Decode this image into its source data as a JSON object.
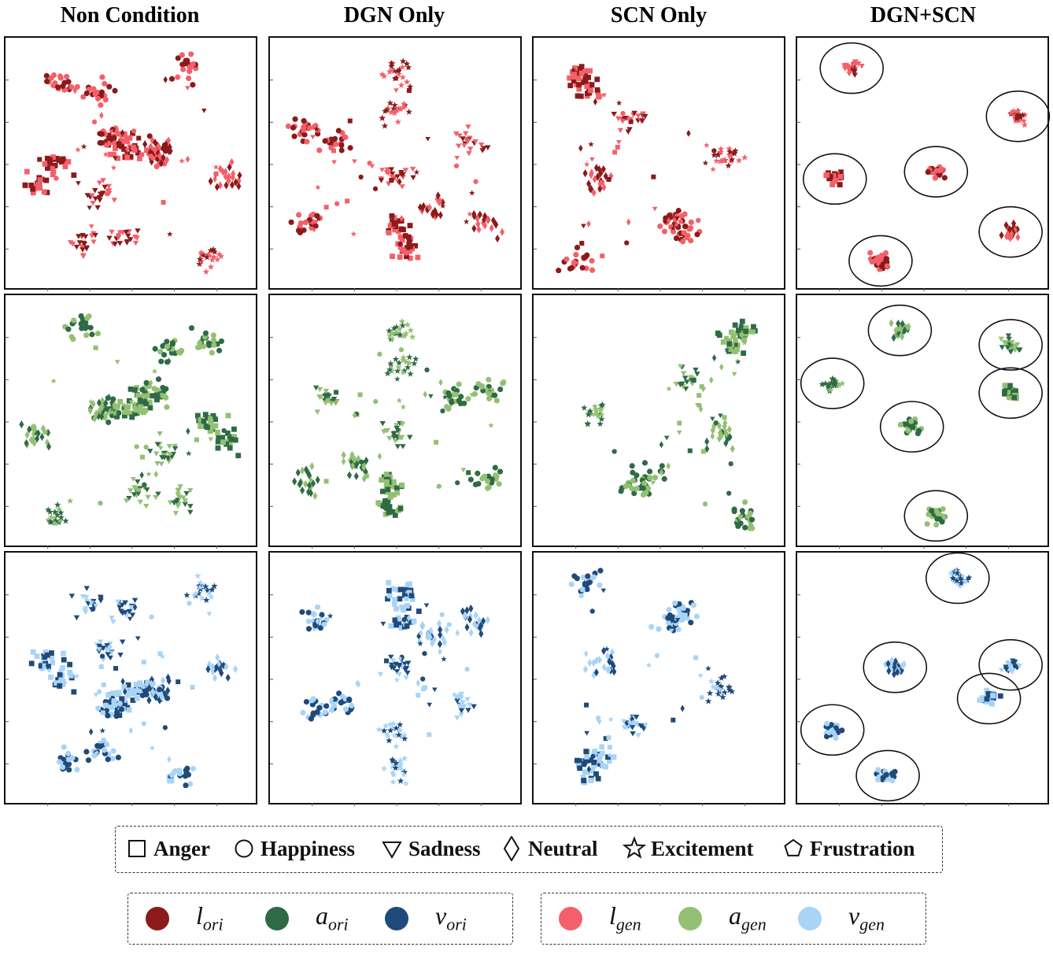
{
  "columns": [
    "Non Condition",
    "DGN Only",
    "SCN Only",
    "DGN+SCN"
  ],
  "shape_legend": [
    {
      "name": "Anger",
      "shape": "square-icon"
    },
    {
      "name": "Happiness",
      "shape": "circle-icon"
    },
    {
      "name": "Sadness",
      "shape": "triangle-down-icon"
    },
    {
      "name": "Neutral",
      "shape": "diamond-icon"
    },
    {
      "name": "Excitement",
      "shape": "star-icon"
    },
    {
      "name": "Frustration",
      "shape": "pentagon-icon"
    }
  ],
  "modality_legend": {
    "original": [
      {
        "base": "l",
        "sub": "ori",
        "color": "#8b1a1a"
      },
      {
        "base": "a",
        "sub": "ori",
        "color": "#2e6b45"
      },
      {
        "base": "v",
        "sub": "ori",
        "color": "#1f4a7a"
      }
    ],
    "generated": [
      {
        "base": "l",
        "sub": "gen",
        "color": "#f4606a"
      },
      {
        "base": "a",
        "sub": "gen",
        "color": "#93c072"
      },
      {
        "base": "v",
        "sub": "gen",
        "color": "#a8d4f7"
      }
    ]
  },
  "chart_data": {
    "type": "scatter",
    "rows": [
      "l",
      "a",
      "v"
    ],
    "colors": {
      "l": {
        "ori": "#8b1a1a",
        "gen": "#f4606a"
      },
      "a": {
        "ori": "#2e6b45",
        "gen": "#93c072"
      },
      "v": {
        "ori": "#1f4a7a",
        "gen": "#a8d4f7"
      }
    },
    "grid": false,
    "panels": {
      "Non Condition": {
        "l": [
          {
            "e": "happiness",
            "x": 0.2,
            "y": 0.83
          },
          {
            "e": "happiness",
            "x": 0.35,
            "y": 0.8
          },
          {
            "e": "happiness",
            "x": 0.72,
            "y": 0.9
          },
          {
            "e": "anger",
            "x": 0.1,
            "y": 0.42
          },
          {
            "e": "anger",
            "x": 0.18,
            "y": 0.5
          },
          {
            "e": "anger",
            "x": 0.45,
            "y": 0.6
          },
          {
            "e": "anger",
            "x": 0.5,
            "y": 0.55
          },
          {
            "e": "happiness",
            "x": 0.4,
            "y": 0.62
          },
          {
            "e": "happiness",
            "x": 0.6,
            "y": 0.55
          },
          {
            "e": "sadness",
            "x": 0.3,
            "y": 0.18
          },
          {
            "e": "sadness",
            "x": 0.47,
            "y": 0.2
          },
          {
            "e": "sadness",
            "x": 0.38,
            "y": 0.38
          },
          {
            "e": "neutral",
            "x": 0.9,
            "y": 0.45
          },
          {
            "e": "neutral",
            "x": 0.63,
            "y": 0.55
          },
          {
            "e": "excitement",
            "x": 0.82,
            "y": 0.12
          }
        ]
      },
      "DGN Only": {
        "l": [
          {
            "e": "excitement",
            "x": 0.5,
            "y": 0.88
          },
          {
            "e": "excitement",
            "x": 0.48,
            "y": 0.72
          },
          {
            "e": "happiness",
            "x": 0.12,
            "y": 0.64
          },
          {
            "e": "happiness",
            "x": 0.25,
            "y": 0.6
          },
          {
            "e": "happiness",
            "x": 0.12,
            "y": 0.26
          },
          {
            "e": "sadness",
            "x": 0.8,
            "y": 0.6
          },
          {
            "e": "sadness",
            "x": 0.5,
            "y": 0.45
          },
          {
            "e": "anger",
            "x": 0.53,
            "y": 0.15
          },
          {
            "e": "anger",
            "x": 0.52,
            "y": 0.24
          },
          {
            "e": "neutral",
            "x": 0.87,
            "y": 0.26
          },
          {
            "e": "neutral",
            "x": 0.66,
            "y": 0.32
          }
        ]
      },
      "SCN Only": {
        "l": [
          {
            "e": "anger",
            "x": 0.16,
            "y": 0.88
          },
          {
            "e": "anger",
            "x": 0.2,
            "y": 0.82
          },
          {
            "e": "sadness",
            "x": 0.38,
            "y": 0.68
          },
          {
            "e": "excitement",
            "x": 0.78,
            "y": 0.54
          },
          {
            "e": "neutral",
            "x": 0.24,
            "y": 0.44
          },
          {
            "e": "happiness",
            "x": 0.55,
            "y": 0.27
          },
          {
            "e": "happiness",
            "x": 0.15,
            "y": 0.1
          },
          {
            "e": "happiness",
            "x": 0.6,
            "y": 0.22
          }
        ]
      },
      "DGN+SCN": {
        "l": [
          {
            "e": "sadness",
            "x": 0.2,
            "y": 0.9
          },
          {
            "e": "excitement",
            "x": 0.89,
            "y": 0.7
          },
          {
            "e": "anger",
            "x": 0.13,
            "y": 0.44
          },
          {
            "e": "happiness",
            "x": 0.55,
            "y": 0.47
          },
          {
            "e": "neutral",
            "x": 0.86,
            "y": 0.22
          },
          {
            "e": "happiness",
            "x": 0.32,
            "y": 0.1
          }
        ],
        "a": [
          {
            "e": "neutral",
            "x": 0.4,
            "y": 0.88
          },
          {
            "e": "sadness",
            "x": 0.86,
            "y": 0.82
          },
          {
            "e": "excitement",
            "x": 0.12,
            "y": 0.66
          },
          {
            "e": "anger",
            "x": 0.86,
            "y": 0.62
          },
          {
            "e": "happiness",
            "x": 0.45,
            "y": 0.48
          },
          {
            "e": "happiness",
            "x": 0.55,
            "y": 0.11
          }
        ],
        "v": [
          {
            "e": "excitement",
            "x": 0.64,
            "y": 0.92
          },
          {
            "e": "neutral",
            "x": 0.38,
            "y": 0.55
          },
          {
            "e": "sadness",
            "x": 0.86,
            "y": 0.56
          },
          {
            "e": "anger",
            "x": 0.77,
            "y": 0.42
          },
          {
            "e": "happiness",
            "x": 0.12,
            "y": 0.29
          },
          {
            "e": "happiness",
            "x": 0.35,
            "y": 0.1
          }
        ]
      }
    }
  }
}
